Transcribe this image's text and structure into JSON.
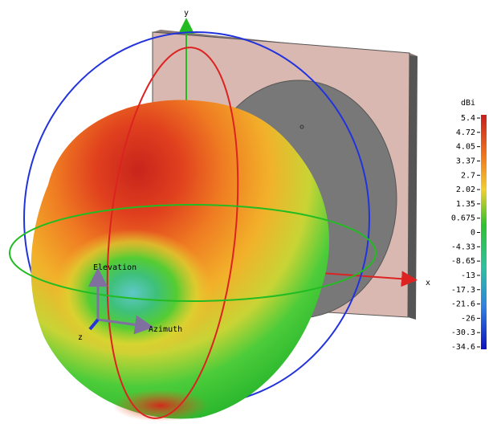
{
  "axes": {
    "y": "y",
    "x": "x",
    "z": "z"
  },
  "local_axes": {
    "elevation": "Elevation",
    "azimuth": "Azimuth"
  },
  "colorbar": {
    "unit": "dBi",
    "labels": [
      "5.4",
      "4.72",
      "4.05",
      "3.37",
      "2.7",
      "2.02",
      "1.35",
      "0.675",
      "0",
      "-4.33",
      "-8.65",
      "-13",
      "-17.3",
      "-21.6",
      "-26",
      "-30.3",
      "-34.6"
    ]
  }
}
